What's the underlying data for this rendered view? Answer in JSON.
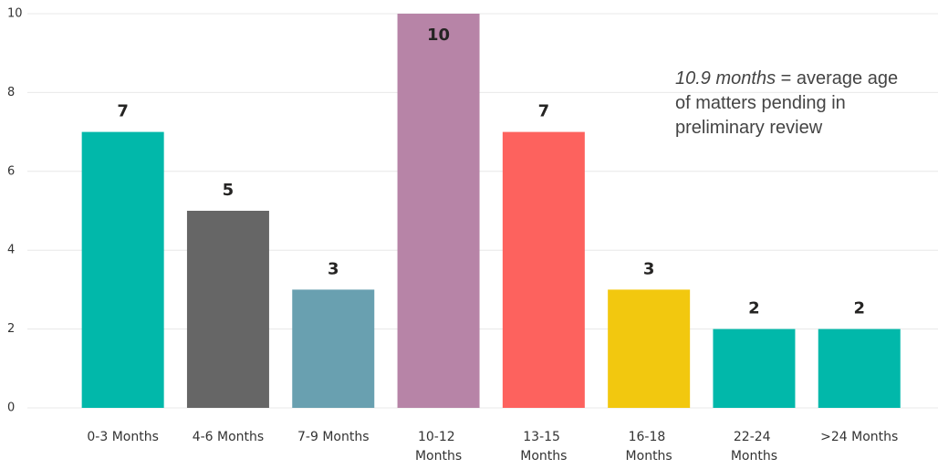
{
  "chart_data": {
    "type": "bar",
    "categories": [
      "0-3 Months",
      "4-6 Months",
      "7-9 Months",
      "10-12 Months",
      "13-15 Months",
      "16-18 Months",
      "22-24 Months",
      ">24 Months"
    ],
    "values": [
      7,
      5,
      3,
      10,
      7,
      3,
      2,
      2
    ],
    "colors": [
      "#01b8aa",
      "#666666",
      "#69a0b0",
      "#b784a7",
      "#fd625e",
      "#f2c80f",
      "#01b8aa",
      "#01b8aa"
    ],
    "ylim": [
      0,
      10
    ],
    "yticks": [
      0,
      2,
      4,
      6,
      8,
      10
    ],
    "grid": true,
    "annotation": {
      "emphasis": "10.9 months",
      "text": "= average age of matters pending in preliminary review"
    }
  }
}
